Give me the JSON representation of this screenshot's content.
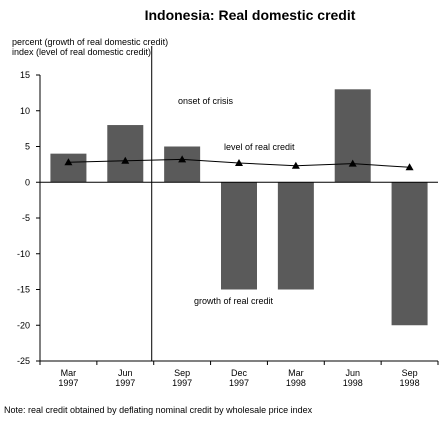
{
  "chart_data": {
    "type": "bar",
    "title": "Indonesia: Real domestic credit",
    "ylabel_lines": [
      "percent (growth of real domestic credit)",
      "index (level of real domestic credit)"
    ],
    "xlabel": "",
    "ylim": [
      -25,
      15
    ],
    "yticks": [
      15,
      10,
      5,
      0,
      -5,
      -10,
      -15,
      -20,
      -25
    ],
    "categories": [
      [
        "Mar",
        "1997"
      ],
      [
        "Jun",
        "1997"
      ],
      [
        "Sep",
        "1997"
      ],
      [
        "Dec",
        "1997"
      ],
      [
        "Mar",
        "1998"
      ],
      [
        "Jun",
        "1998"
      ],
      [
        "Sep",
        "1998"
      ]
    ],
    "series": [
      {
        "name": "growth of real credit",
        "kind": "bar",
        "color": "#5a5a5a",
        "values": [
          4,
          8,
          5,
          -15,
          -15,
          13,
          -20
        ]
      },
      {
        "name": "level of real credit",
        "kind": "line",
        "marker": "triangle",
        "color": "#000000",
        "values": [
          2.8,
          3.0,
          3.2,
          2.7,
          2.3,
          2.6,
          2.1
        ]
      }
    ],
    "annotations": {
      "crisis": "onset of crisis",
      "level": "level of real credit",
      "growth": "growth of real credit"
    },
    "crisis_after_index": 1,
    "grid": false
  },
  "note": "Note: real credit obtained by deflating nominal credit by wholesale price index"
}
